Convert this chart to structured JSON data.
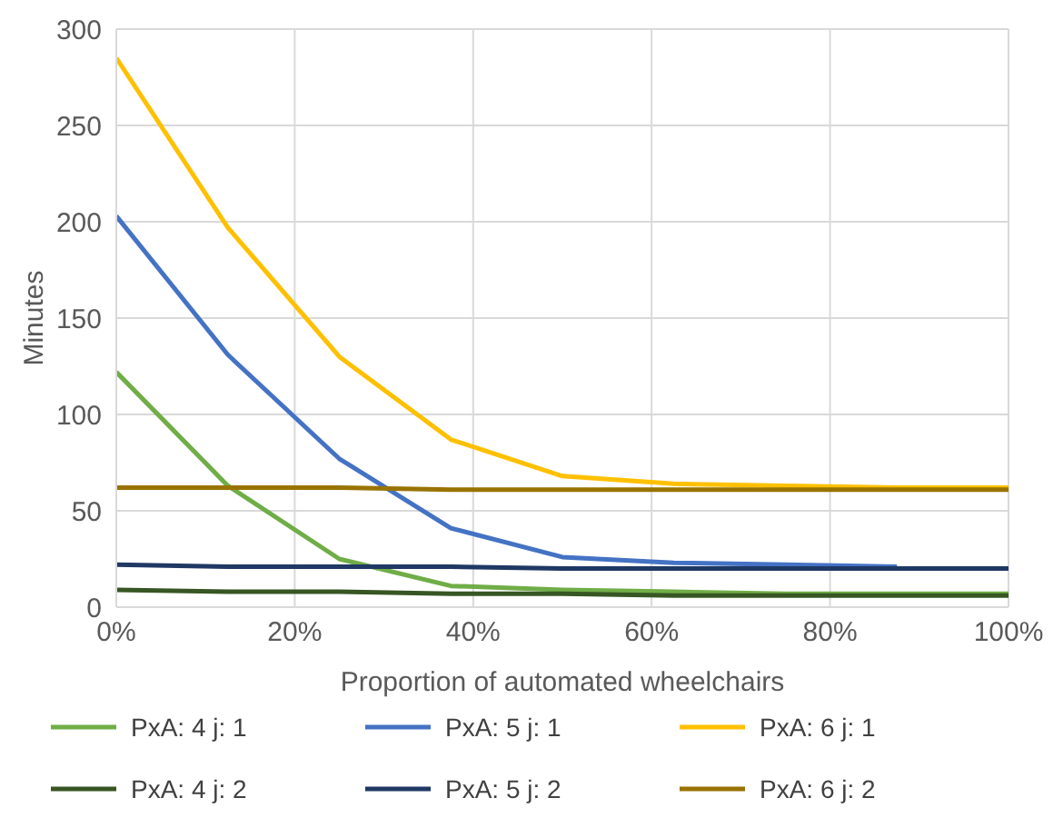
{
  "chart_data": {
    "type": "line",
    "xlabel": "Proportion of automated wheelchairs",
    "ylabel": "Minutes",
    "x": [
      0,
      12.5,
      25,
      37.5,
      50,
      62.5,
      75,
      87.5,
      100
    ],
    "xlim": [
      0,
      100
    ],
    "xticks": [
      {
        "value": 0,
        "label": "0%"
      },
      {
        "value": 20,
        "label": "20%"
      },
      {
        "value": 40,
        "label": "40%"
      },
      {
        "value": 60,
        "label": "60%"
      },
      {
        "value": 80,
        "label": "80%"
      },
      {
        "value": 100,
        "label": "100%"
      }
    ],
    "ylim": [
      0,
      300
    ],
    "yticks": [
      0,
      50,
      100,
      150,
      200,
      250,
      300
    ],
    "grid": true,
    "legend": "bottom",
    "marker": "none",
    "line_style": "solid",
    "series": [
      {
        "name": "PxA: 4 j: 1",
        "color": "#70ad47",
        "values": [
          122,
          63,
          25,
          11,
          9,
          8,
          7,
          7,
          7
        ]
      },
      {
        "name": "PxA: 5 j: 1",
        "color": "#4472c4",
        "values": [
          203,
          131,
          77,
          41,
          26,
          23,
          22,
          21,
          null
        ]
      },
      {
        "name": "PxA: 6 j: 1",
        "color": "#ffc000",
        "values": [
          285,
          197,
          130,
          87,
          68,
          64,
          63,
          62,
          62
        ]
      },
      {
        "name": "PxA: 4 j: 2",
        "color": "#375623",
        "values": [
          9,
          8,
          8,
          7,
          7,
          6,
          6,
          6,
          6
        ]
      },
      {
        "name": "PxA: 5 j: 2",
        "color": "#1f3864",
        "values": [
          22,
          21,
          21,
          21,
          20,
          20,
          20,
          20,
          20
        ]
      },
      {
        "name": "PxA: 6 j: 2",
        "color": "#997300",
        "values": [
          62,
          62,
          62,
          61,
          61,
          61,
          61,
          61,
          61
        ]
      }
    ]
  }
}
